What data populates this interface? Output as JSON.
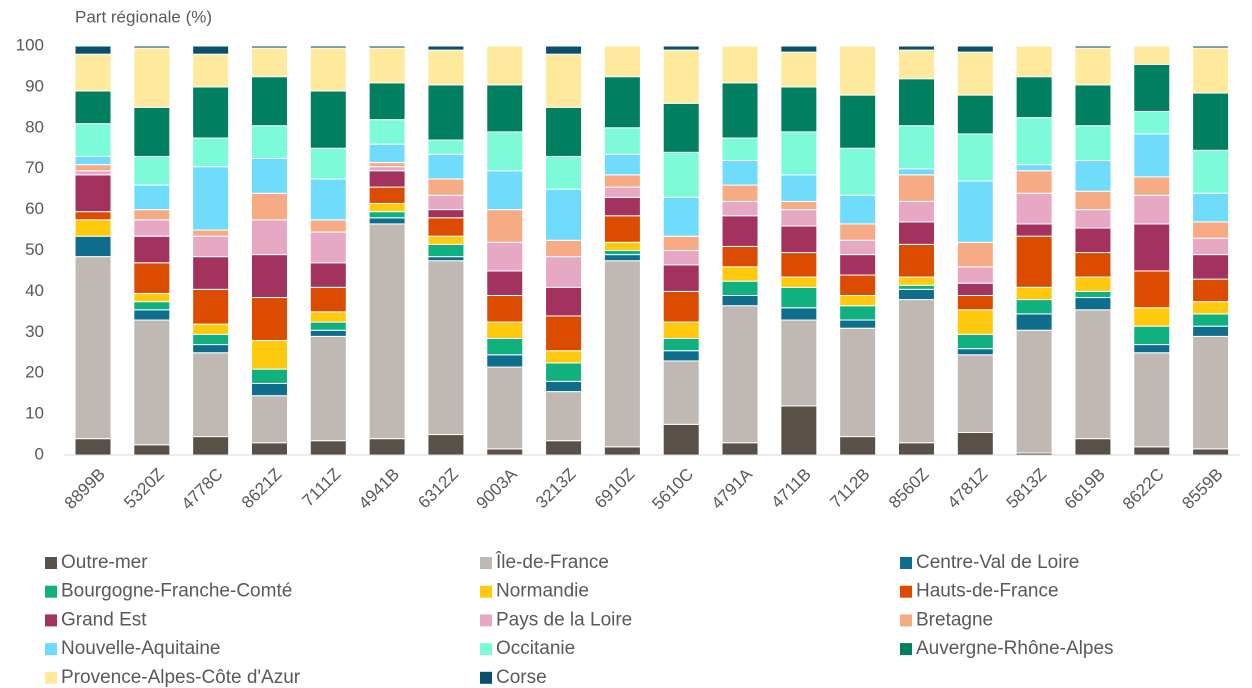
{
  "chart_data": {
    "type": "stacked_bar",
    "y_label": "Part régionale (%)",
    "categories": [
      "8899B",
      "5320Z",
      "4778C",
      "8621Z",
      "7111Z",
      "4941B",
      "6312Z",
      "9003A",
      "3213Z",
      "6910Z",
      "5610C",
      "4791A",
      "4711B",
      "7112B",
      "8560Z",
      "4781Z",
      "5813Z",
      "6619B",
      "8622C",
      "8559B"
    ],
    "ylim": [
      0,
      100
    ],
    "yticks": [
      0,
      10,
      20,
      30,
      40,
      50,
      60,
      70,
      80,
      90,
      100
    ],
    "grid": false,
    "series": [
      {
        "name": "Outre-mer",
        "color": "#595048",
        "values": [
          4,
          2.5,
          4.5,
          3,
          3.5,
          4,
          5,
          1.5,
          3.5,
          2,
          7.5,
          3,
          12,
          4.5,
          3,
          5.5,
          0.5,
          4,
          2,
          1.5
        ]
      },
      {
        "name": "Île-de-France",
        "color": "#c0b8b2",
        "values": [
          44.5,
          30.5,
          20.5,
          11.5,
          25.5,
          52.5,
          42.5,
          20,
          12,
          45.5,
          15.5,
          33.5,
          21,
          26.5,
          35,
          19,
          30,
          31.5,
          23,
          27.5
        ]
      },
      {
        "name": "Centre-Val de Loire",
        "color": "#0f6e8c",
        "values": [
          5,
          2.5,
          2,
          3,
          1.5,
          1.5,
          1,
          3,
          2.5,
          1.5,
          2.5,
          2.5,
          3,
          2,
          2.5,
          1.5,
          4,
          3,
          2,
          2.5
        ]
      },
      {
        "name": "Bourgogne-Franche-Comté",
        "color": "#10b07f",
        "values": [
          0,
          2,
          2.5,
          3.5,
          2,
          1.5,
          3,
          4,
          4.5,
          1,
          3,
          3.5,
          5,
          3.5,
          1,
          3.5,
          3.5,
          1.5,
          4.5,
          3
        ]
      },
      {
        "name": "Normandie",
        "color": "#ffc90e",
        "values": [
          4,
          2,
          2.5,
          7,
          2.5,
          2,
          2,
          4,
          3,
          2,
          4,
          3.5,
          2.5,
          2.5,
          2,
          6,
          3,
          3.5,
          4.5,
          3
        ]
      },
      {
        "name": "Hauts-de-France",
        "color": "#db4c00",
        "values": [
          2,
          7.5,
          8.5,
          10.5,
          6,
          4,
          4.5,
          6.5,
          8.5,
          6.5,
          7.5,
          5,
          6,
          5,
          8,
          3.5,
          12.5,
          6,
          9,
          5.5
        ]
      },
      {
        "name": "Grand Est",
        "color": "#a3325f",
        "values": [
          9,
          6.5,
          8,
          10.5,
          6,
          4,
          2,
          6,
          7,
          4.5,
          6.5,
          7.5,
          6.5,
          5,
          5.5,
          3,
          3,
          6,
          11.5,
          6
        ]
      },
      {
        "name": "Pays de la Loire",
        "color": "#e6a8c3",
        "values": [
          1,
          4,
          5,
          8.5,
          7.5,
          1,
          3.5,
          7,
          7.5,
          2.5,
          3.5,
          3.5,
          4,
          3.5,
          5,
          4,
          7.5,
          4.5,
          7,
          4
        ]
      },
      {
        "name": "Bretagne",
        "color": "#f7ab84",
        "values": [
          1.5,
          2.5,
          1.5,
          6.5,
          3,
          1,
          4,
          8,
          4,
          3,
          3.5,
          4,
          2,
          4,
          6.5,
          6,
          5.5,
          4.5,
          4.5,
          4
        ]
      },
      {
        "name": "Nouvelle-Aquitaine",
        "color": "#6fdcfb",
        "values": [
          2,
          6,
          15.5,
          8.5,
          10,
          4.5,
          6,
          9.5,
          12.5,
          5,
          9.5,
          6,
          6.5,
          7,
          1.5,
          15,
          1.5,
          7.5,
          10.5,
          7
        ]
      },
      {
        "name": "Occitanie",
        "color": "#7dfbd8",
        "values": [
          8,
          7,
          7,
          8,
          7.5,
          6,
          3.5,
          9.5,
          8,
          6.5,
          11,
          5.5,
          10.5,
          11.5,
          10.5,
          11.5,
          11.5,
          8.5,
          5.5,
          10.5
        ]
      },
      {
        "name": "Auvergne-Rhône-Alpes",
        "color": "#008060",
        "values": [
          8,
          12,
          12.5,
          12,
          14,
          9,
          13.5,
          11.5,
          12,
          12.5,
          12,
          13.5,
          11,
          13,
          11.5,
          9.5,
          10,
          10,
          11.5,
          14
        ]
      },
      {
        "name": "Provence-Alpes-Côte d'Azur",
        "color": "#ffe99c",
        "values": [
          9,
          14.5,
          8,
          7,
          10.5,
          8.5,
          8.5,
          9.5,
          13,
          7.5,
          13,
          9,
          8.5,
          12,
          7,
          10.5,
          7.5,
          9,
          4.5,
          11
        ]
      },
      {
        "name": "Corse",
        "color": "#0b4f6c",
        "values": [
          2,
          0.5,
          2,
          0.5,
          0.5,
          0.5,
          1,
          0,
          2,
          0,
          1,
          0,
          1.5,
          0,
          1,
          1.5,
          0,
          0.5,
          0,
          0.5
        ]
      }
    ]
  }
}
